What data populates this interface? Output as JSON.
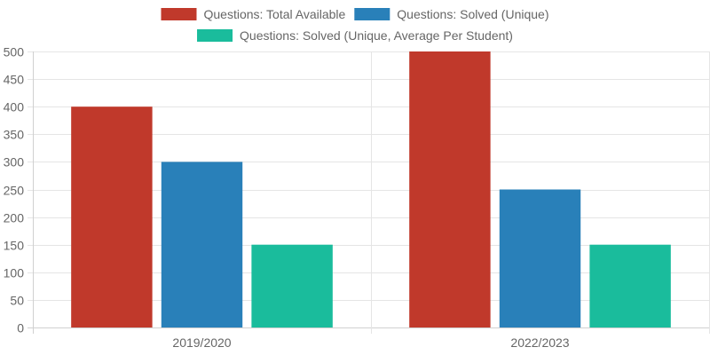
{
  "chart_data": {
    "type": "bar",
    "categories": [
      "2019/2020",
      "2022/2023"
    ],
    "series": [
      {
        "name": "Questions: Total Available",
        "values": [
          400,
          500
        ],
        "color": "#c0392b"
      },
      {
        "name": "Questions: Solved (Unique)",
        "values": [
          300,
          250
        ],
        "color": "#2980b9"
      },
      {
        "name": "Questions: Solved (Unique, Average Per Student)",
        "values": [
          150,
          150
        ],
        "color": "#1abc9c"
      }
    ],
    "ylim": [
      0,
      500
    ],
    "yticks": [
      0,
      50,
      100,
      150,
      200,
      250,
      300,
      350,
      400,
      450,
      500
    ],
    "grid": true,
    "legend_position": "top"
  }
}
